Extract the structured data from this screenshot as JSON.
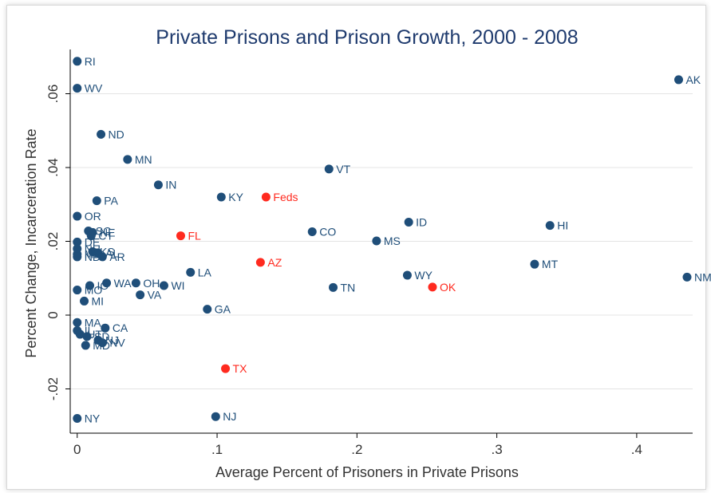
{
  "chart_data": {
    "type": "scatter",
    "title": "Private Prisons and Prison Growth, 2000 - 2008",
    "xlabel": "Average Percent of Prisoners in Private Prisons",
    "ylabel": "Percent Change, Incarceration Rate",
    "xlim": [
      -0.005,
      0.44
    ],
    "ylim": [
      -0.032,
      0.072
    ],
    "x_ticks": [
      {
        "value": 0,
        "label": "0"
      },
      {
        "value": 0.1,
        "label": ".1"
      },
      {
        "value": 0.2,
        "label": ".2"
      },
      {
        "value": 0.3,
        "label": ".3"
      },
      {
        "value": 0.4,
        "label": ".4"
      }
    ],
    "y_ticks": [
      {
        "value": -0.02,
        "label": "-.02"
      },
      {
        "value": 0,
        "label": "0"
      },
      {
        "value": 0.02,
        "label": ".02"
      },
      {
        "value": 0.04,
        "label": ".04"
      },
      {
        "value": 0.06,
        "label": ".06"
      }
    ],
    "grid": "horizontal",
    "colors": {
      "title": "#1f3b6e",
      "default": "#1f4e79",
      "highlight": "#ff2a1f"
    },
    "points": [
      {
        "label": "RI",
        "x": 0.0,
        "y": 0.0688,
        "highlight": false
      },
      {
        "label": "WV",
        "x": 0.0,
        "y": 0.0615,
        "highlight": false
      },
      {
        "label": "AK",
        "x": 0.43,
        "y": 0.0638,
        "highlight": false
      },
      {
        "label": "ND",
        "x": 0.017,
        "y": 0.049,
        "highlight": false
      },
      {
        "label": "MN",
        "x": 0.036,
        "y": 0.0422,
        "highlight": false
      },
      {
        "label": "VT",
        "x": 0.18,
        "y": 0.0396,
        "highlight": false
      },
      {
        "label": "IN",
        "x": 0.058,
        "y": 0.0353,
        "highlight": false
      },
      {
        "label": "KY",
        "x": 0.103,
        "y": 0.032,
        "highlight": false
      },
      {
        "label": "Feds",
        "x": 0.135,
        "y": 0.032,
        "highlight": true
      },
      {
        "label": "PA",
        "x": 0.014,
        "y": 0.031,
        "highlight": false
      },
      {
        "label": "OR",
        "x": 0.0,
        "y": 0.0268,
        "highlight": false
      },
      {
        "label": "ID",
        "x": 0.237,
        "y": 0.0252,
        "highlight": false
      },
      {
        "label": "HI",
        "x": 0.338,
        "y": 0.0243,
        "highlight": false
      },
      {
        "label": "SC",
        "x": 0.008,
        "y": 0.0228,
        "highlight": false
      },
      {
        "label": "NE",
        "x": 0.011,
        "y": 0.0224,
        "highlight": false
      },
      {
        "label": "CT",
        "x": 0.01,
        "y": 0.0215,
        "highlight": false
      },
      {
        "label": "CO",
        "x": 0.168,
        "y": 0.0226,
        "highlight": false
      },
      {
        "label": "FL",
        "x": 0.074,
        "y": 0.0215,
        "highlight": true
      },
      {
        "label": "MS",
        "x": 0.214,
        "y": 0.0201,
        "highlight": false
      },
      {
        "label": "DE",
        "x": 0.0,
        "y": 0.0198,
        "highlight": false
      },
      {
        "label": "NH",
        "x": 0.0,
        "y": 0.018,
        "highlight": false
      },
      {
        "label": "KS",
        "x": 0.011,
        "y": 0.0172,
        "highlight": false
      },
      {
        "label": "AL",
        "x": 0.015,
        "y": 0.0168,
        "highlight": false
      },
      {
        "label": "ME",
        "x": 0.0,
        "y": 0.0165,
        "highlight": false
      },
      {
        "label": "ND",
        "x": 0.0,
        "y": 0.0158,
        "highlight": false
      },
      {
        "label": "AR",
        "x": 0.018,
        "y": 0.0158,
        "highlight": false
      },
      {
        "label": "AZ",
        "x": 0.131,
        "y": 0.0143,
        "highlight": true
      },
      {
        "label": "MT",
        "x": 0.327,
        "y": 0.0138,
        "highlight": false
      },
      {
        "label": "LA",
        "x": 0.081,
        "y": 0.0116,
        "highlight": false
      },
      {
        "label": "WY",
        "x": 0.236,
        "y": 0.0108,
        "highlight": false
      },
      {
        "label": "NM",
        "x": 0.436,
        "y": 0.0103,
        "highlight": false
      },
      {
        "label": "WA",
        "x": 0.021,
        "y": 0.0087,
        "highlight": false
      },
      {
        "label": "OH",
        "x": 0.042,
        "y": 0.0087,
        "highlight": false
      },
      {
        "label": "IO",
        "x": 0.009,
        "y": 0.008,
        "highlight": false
      },
      {
        "label": "WI",
        "x": 0.062,
        "y": 0.008,
        "highlight": false
      },
      {
        "label": "TN",
        "x": 0.183,
        "y": 0.0075,
        "highlight": false
      },
      {
        "label": "OK",
        "x": 0.254,
        "y": 0.0076,
        "highlight": true
      },
      {
        "label": "MO",
        "x": 0.0,
        "y": 0.0068,
        "highlight": false
      },
      {
        "label": "VA",
        "x": 0.045,
        "y": 0.0055,
        "highlight": false
      },
      {
        "label": "MI",
        "x": 0.005,
        "y": 0.0038,
        "highlight": false
      },
      {
        "label": "GA",
        "x": 0.093,
        "y": 0.0016,
        "highlight": false
      },
      {
        "label": "MA",
        "x": 0.0,
        "y": -0.002,
        "highlight": false
      },
      {
        "label": "IL",
        "x": 0.0,
        "y": -0.0042,
        "highlight": false
      },
      {
        "label": "CA",
        "x": 0.02,
        "y": -0.0035,
        "highlight": false
      },
      {
        "label": "UT",
        "x": 0.002,
        "y": -0.0052,
        "highlight": false
      },
      {
        "label": "SD",
        "x": 0.007,
        "y": -0.0058,
        "highlight": false
      },
      {
        "label": "NJ",
        "x": 0.015,
        "y": -0.0068,
        "highlight": false
      },
      {
        "label": "NV",
        "x": 0.018,
        "y": -0.0075,
        "highlight": false
      },
      {
        "label": "MD",
        "x": 0.006,
        "y": -0.0082,
        "highlight": false
      },
      {
        "label": "TX",
        "x": 0.106,
        "y": -0.0145,
        "highlight": true
      },
      {
        "label": "NY",
        "x": 0.0,
        "y": -0.028,
        "highlight": false
      },
      {
        "label": "NJ",
        "x": 0.099,
        "y": -0.0275,
        "highlight": false
      }
    ]
  }
}
